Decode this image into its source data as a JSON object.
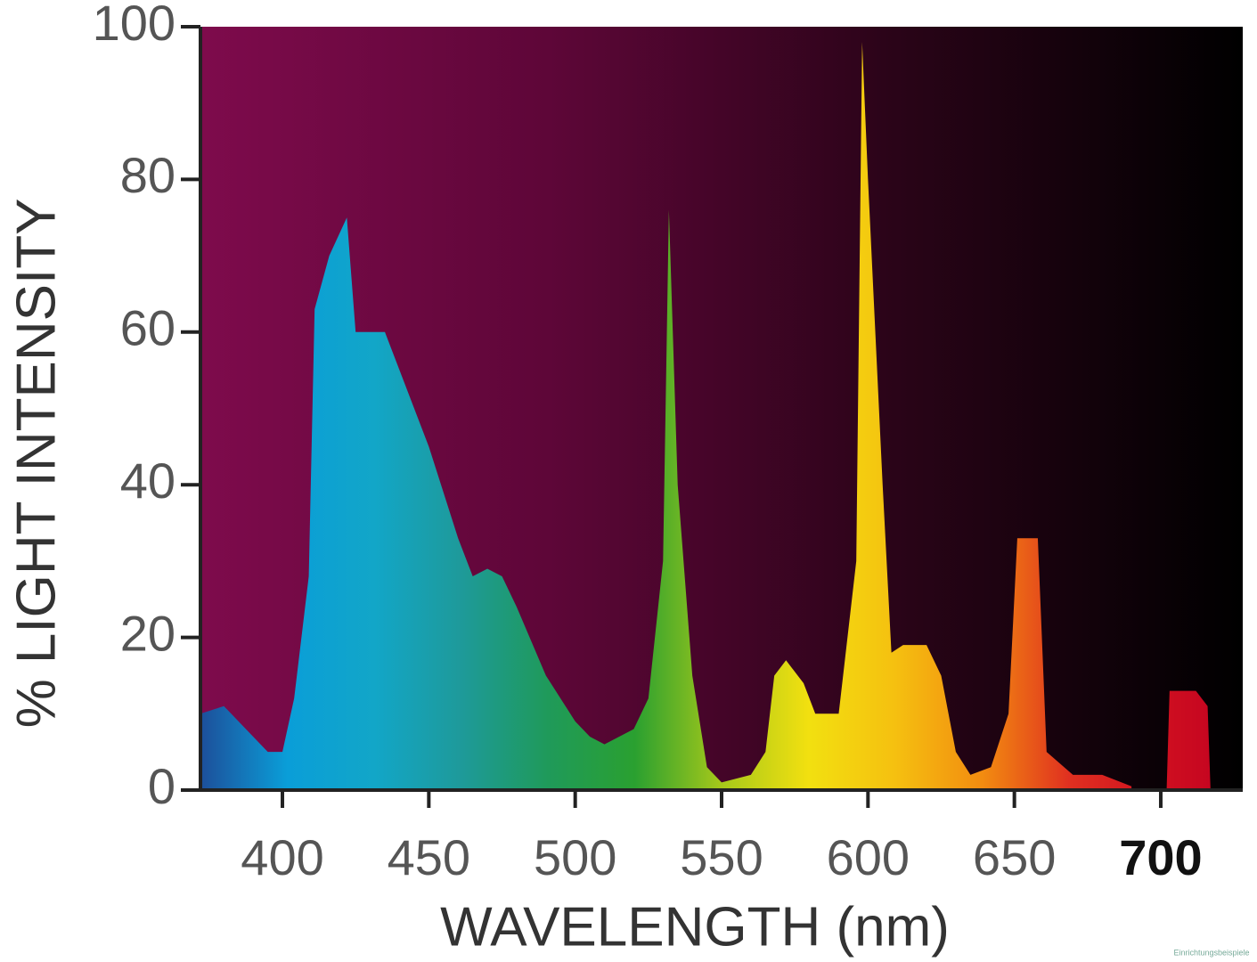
{
  "chart_data": {
    "type": "area",
    "xlabel": "WAVELENGTH (nm)",
    "ylabel": "% LIGHT INTENSITY",
    "x": [
      372,
      380,
      390,
      395,
      400,
      404,
      409,
      411,
      416,
      422,
      425,
      435,
      440,
      450,
      460,
      465,
      470,
      475,
      480,
      490,
      500,
      505,
      510,
      520,
      525,
      530,
      532,
      535,
      540,
      545,
      550,
      560,
      565,
      568,
      572,
      578,
      582,
      590,
      596,
      598,
      600,
      605,
      608,
      612,
      620,
      625,
      630,
      635,
      642,
      648,
      651,
      658,
      661,
      670,
      680,
      690,
      696,
      702,
      703,
      712,
      716,
      717
    ],
    "values": [
      10,
      11,
      7,
      5,
      5,
      12,
      28,
      63,
      70,
      75,
      60,
      60,
      55,
      45,
      33,
      28,
      29,
      28,
      24,
      15,
      9,
      7,
      6,
      8,
      12,
      30,
      76,
      40,
      15,
      3,
      1,
      2,
      5,
      15,
      17,
      14,
      10,
      10,
      30,
      98,
      80,
      40,
      18,
      19,
      19,
      15,
      5,
      2,
      3,
      10,
      33,
      33,
      5,
      2,
      2,
      0.5,
      null,
      0,
      13,
      13,
      11,
      0
    ],
    "colors": [
      "#1d4f9a",
      "#0a9ed8",
      "#12a6c8",
      "#1e9a9a",
      "#1f9a5a",
      "#2aa030",
      "#a6c81a",
      "#f2e010",
      "#f5c010",
      "#f28c10",
      "#e03020",
      "#d01020",
      "#c00020"
    ],
    "background": [
      "#7e0b4c",
      "#5e0638",
      "#2a0418",
      "#000000"
    ],
    "xlim": [
      372,
      728
    ],
    "ylim": [
      0,
      100
    ],
    "xticks": [
      400,
      450,
      500,
      550,
      600,
      650,
      700
    ],
    "yticks": [
      0,
      20,
      40,
      60,
      80,
      100
    ],
    "watermark": "Einrichtungsbeispiele"
  }
}
